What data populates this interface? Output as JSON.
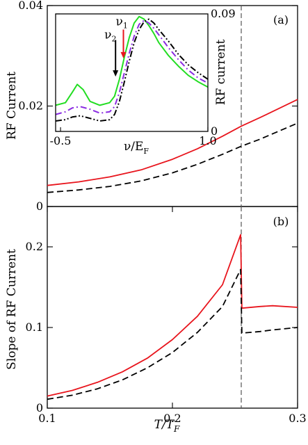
{
  "chart_data": [
    {
      "id": "top",
      "type": "line",
      "panel_label": "(a)",
      "xlabel": "",
      "ylabel": "RF Current",
      "xlim": [
        0.1,
        0.3
      ],
      "ylim": [
        0,
        0.04
      ],
      "yticks": [
        0,
        0.02,
        0.04
      ],
      "ytick_labels": [
        "0",
        "0.02",
        "0.04"
      ],
      "vline_x": 0.255,
      "series": [
        {
          "color": "#e8141c",
          "dash": "solid",
          "x": [
            0.1,
            0.125,
            0.15,
            0.175,
            0.2,
            0.22,
            0.24,
            0.255,
            0.27,
            0.3
          ],
          "y": [
            0.0042,
            0.0049,
            0.0059,
            0.0073,
            0.0094,
            0.0115,
            0.014,
            0.016,
            0.0177,
            0.0213
          ]
        },
        {
          "color": "#000000",
          "dash": "dashed",
          "x": [
            0.1,
            0.125,
            0.15,
            0.175,
            0.2,
            0.22,
            0.24,
            0.255,
            0.27,
            0.3
          ],
          "y": [
            0.0028,
            0.0033,
            0.004,
            0.0051,
            0.0067,
            0.0084,
            0.0104,
            0.012,
            0.0134,
            0.0166
          ]
        }
      ]
    },
    {
      "id": "inset",
      "type": "line",
      "xlabel_text": "ν/E",
      "xlabel_sub": "F",
      "ylabel": "RF current",
      "xlim": [
        -0.55,
        1.0
      ],
      "ylim": [
        0,
        0.09
      ],
      "xticks": [
        -0.5,
        1.0
      ],
      "xtick_labels": [
        "-0.5",
        "1.0"
      ],
      "yticks": [
        0,
        0.09
      ],
      "ytick_labels": [
        "0",
        "0.09"
      ],
      "annotations": [
        {
          "text": "ν",
          "sub": "1",
          "color": "#e8141c",
          "arrow_x": 0.14,
          "arrow_y_top": 0.078,
          "arrow_y_bottom": 0.056
        },
        {
          "text": "ν",
          "sub": "2",
          "color": "#000000",
          "arrow_x": 0.06,
          "arrow_y_top": 0.07,
          "arrow_y_bottom": 0.042
        }
      ],
      "series": [
        {
          "color": "#22dd22",
          "dash": "solid",
          "x": [
            -0.55,
            -0.45,
            -0.38,
            -0.33,
            -0.27,
            -0.2,
            -0.1,
            0.0,
            0.05,
            0.1,
            0.15,
            0.2,
            0.25,
            0.3,
            0.35,
            0.4,
            0.45,
            0.5,
            0.6,
            0.7,
            0.8,
            0.9,
            1.0
          ],
          "y": [
            0.02,
            0.022,
            0.03,
            0.036,
            0.032,
            0.023,
            0.02,
            0.022,
            0.027,
            0.04,
            0.057,
            0.072,
            0.083,
            0.088,
            0.086,
            0.081,
            0.075,
            0.068,
            0.058,
            0.05,
            0.043,
            0.038,
            0.034
          ]
        },
        {
          "color": "#8a2be2",
          "dash": "dashdot",
          "x": [
            -0.55,
            -0.45,
            -0.38,
            -0.3,
            -0.2,
            -0.1,
            0.0,
            0.05,
            0.1,
            0.15,
            0.2,
            0.25,
            0.3,
            0.35,
            0.4,
            0.45,
            0.5,
            0.6,
            0.7,
            0.8,
            0.9,
            1.0
          ],
          "y": [
            0.013,
            0.015,
            0.018,
            0.019,
            0.017,
            0.014,
            0.015,
            0.019,
            0.03,
            0.045,
            0.06,
            0.073,
            0.082,
            0.085,
            0.083,
            0.079,
            0.074,
            0.064,
            0.055,
            0.047,
            0.041,
            0.037
          ]
        },
        {
          "color": "#000000",
          "dash": "dashdotdot",
          "x": [
            -0.55,
            -0.45,
            -0.38,
            -0.3,
            -0.2,
            -0.1,
            0.0,
            0.05,
            0.1,
            0.15,
            0.2,
            0.25,
            0.3,
            0.35,
            0.4,
            0.45,
            0.5,
            0.6,
            0.7,
            0.8,
            0.9,
            1.0
          ],
          "y": [
            0.008,
            0.009,
            0.011,
            0.012,
            0.01,
            0.008,
            0.009,
            0.013,
            0.023,
            0.038,
            0.054,
            0.068,
            0.078,
            0.084,
            0.086,
            0.083,
            0.078,
            0.069,
            0.059,
            0.051,
            0.045,
            0.04
          ]
        }
      ]
    },
    {
      "id": "bottom",
      "type": "line",
      "panel_label": "(b)",
      "xlabel_text": "T/T",
      "xlabel_sub": "F",
      "ylabel": "Slope of RF Current",
      "xlim": [
        0.1,
        0.3
      ],
      "ylim": [
        0,
        0.25
      ],
      "xticks": [
        0.1,
        0.2,
        0.3
      ],
      "xtick_labels": [
        "0.1",
        "0.2",
        "0.3"
      ],
      "yticks": [
        0,
        0.1,
        0.2
      ],
      "ytick_labels": [
        "0",
        "0.1",
        "0.2"
      ],
      "vline_x": 0.255,
      "series": [
        {
          "color": "#e8141c",
          "dash": "solid",
          "x": [
            0.1,
            0.12,
            0.14,
            0.16,
            0.18,
            0.2,
            0.22,
            0.24,
            0.2545,
            0.2555,
            0.27,
            0.28,
            0.3
          ],
          "y": [
            0.015,
            0.022,
            0.032,
            0.045,
            0.062,
            0.085,
            0.114,
            0.153,
            0.215,
            0.124,
            0.126,
            0.127,
            0.125
          ]
        },
        {
          "color": "#000000",
          "dash": "dashed",
          "x": [
            0.1,
            0.12,
            0.14,
            0.16,
            0.18,
            0.2,
            0.22,
            0.24,
            0.2545,
            0.2555,
            0.27,
            0.28,
            0.3
          ],
          "y": [
            0.011,
            0.016,
            0.024,
            0.035,
            0.05,
            0.069,
            0.094,
            0.126,
            0.172,
            0.093,
            0.095,
            0.097,
            0.1
          ]
        }
      ]
    }
  ]
}
